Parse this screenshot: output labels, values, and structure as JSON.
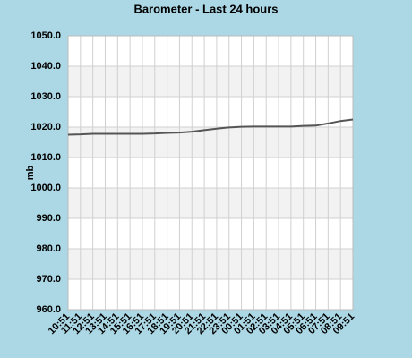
{
  "chart_data": {
    "type": "line",
    "title": "Barometer - Last 24 hours",
    "y_label": "mb",
    "categories": [
      "10:51",
      "11:51",
      "12:51",
      "13:51",
      "14:51",
      "15:51",
      "16:51",
      "17:51",
      "18:51",
      "19:51",
      "20:51",
      "21:51",
      "22:51",
      "23:51",
      "00:51",
      "01:51",
      "02:51",
      "03:51",
      "04:51",
      "05:51",
      "06:51",
      "07:51",
      "08:51",
      "09:51"
    ],
    "series": [
      {
        "name": "Barometer",
        "color": "#555555",
        "values": [
          1017.5,
          1017.6,
          1017.8,
          1017.8,
          1017.8,
          1017.8,
          1017.8,
          1017.9,
          1018.1,
          1018.2,
          1018.5,
          1019.0,
          1019.5,
          1019.9,
          1020.1,
          1020.2,
          1020.2,
          1020.2,
          1020.2,
          1020.4,
          1020.5,
          1021.2,
          1022.0,
          1022.5
        ]
      }
    ],
    "ylim": [
      960,
      1050
    ],
    "yticks": [
      {
        "value": 960,
        "label": "960.0"
      },
      {
        "value": 970,
        "label": "970.0"
      },
      {
        "value": 980,
        "label": "980.0"
      },
      {
        "value": 990,
        "label": "990.0"
      },
      {
        "value": 1000,
        "label": "1000.0"
      },
      {
        "value": 1010,
        "label": "1010.0"
      },
      {
        "value": 1020,
        "label": "1020.0"
      },
      {
        "value": 1030,
        "label": "1030.0"
      },
      {
        "value": 1040,
        "label": "1040.0"
      },
      {
        "value": 1050,
        "label": "1050.0"
      }
    ],
    "grid": true
  }
}
